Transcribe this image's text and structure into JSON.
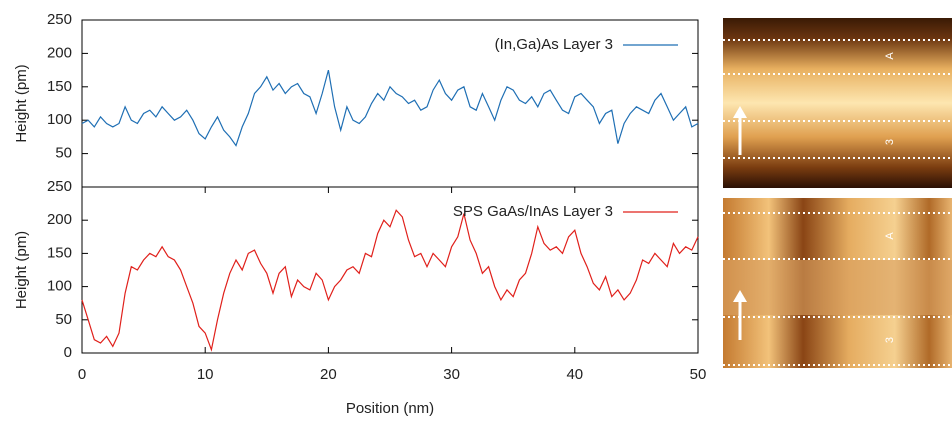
{
  "chart_data": [
    {
      "type": "line",
      "ylabel": "Height (pm)",
      "xlim": [
        0,
        50
      ],
      "ylim": [
        0,
        250
      ],
      "yticks": [
        50,
        100,
        150,
        200,
        250
      ],
      "legend": "upper right",
      "x": [
        0,
        0.5,
        1,
        1.5,
        2,
        2.5,
        3,
        3.5,
        4,
        4.5,
        5,
        5.5,
        6,
        6.5,
        7,
        7.5,
        8,
        8.5,
        9,
        9.5,
        10,
        10.5,
        11,
        11.5,
        12,
        12.5,
        13,
        13.5,
        14,
        14.5,
        15,
        15.5,
        16,
        16.5,
        17,
        17.5,
        18,
        18.5,
        19,
        19.5,
        20,
        20.5,
        21,
        21.5,
        22,
        22.5,
        23,
        23.5,
        24,
        24.5,
        25,
        25.5,
        26,
        26.5,
        27,
        27.5,
        28,
        28.5,
        29,
        29.5,
        30,
        30.5,
        31,
        31.5,
        32,
        32.5,
        33,
        33.5,
        34,
        34.5,
        35,
        35.5,
        36,
        36.5,
        37,
        37.5,
        38,
        38.5,
        39,
        39.5,
        40,
        40.5,
        41,
        41.5,
        42,
        42.5,
        43,
        43.5,
        44,
        44.5,
        45,
        45.5,
        46,
        46.5,
        47,
        47.5,
        48,
        48.5,
        49,
        49.5,
        50
      ],
      "series": [
        {
          "name": "(In,Ga)As Layer 3",
          "color": "#1f6fb4",
          "values": [
            95,
            100,
            90,
            105,
            95,
            90,
            95,
            120,
            100,
            95,
            110,
            115,
            105,
            120,
            110,
            100,
            105,
            115,
            100,
            80,
            72,
            90,
            105,
            85,
            75,
            62,
            90,
            110,
            140,
            150,
            165,
            145,
            155,
            140,
            150,
            155,
            140,
            135,
            110,
            140,
            175,
            120,
            85,
            120,
            100,
            95,
            105,
            125,
            140,
            130,
            150,
            140,
            135,
            125,
            130,
            115,
            120,
            145,
            160,
            140,
            130,
            145,
            150,
            120,
            115,
            140,
            120,
            100,
            130,
            150,
            145,
            130,
            125,
            135,
            120,
            140,
            145,
            130,
            115,
            110,
            135,
            140,
            130,
            120,
            95,
            110,
            115,
            65,
            95,
            110,
            120,
            115,
            110,
            130,
            140,
            120,
            100,
            110,
            120,
            90,
            95
          ]
        }
      ]
    },
    {
      "type": "line",
      "ylabel": "Height (pm)",
      "xlabel": "Position (nm)",
      "xlim": [
        0,
        50
      ],
      "ylim": [
        0,
        250
      ],
      "xticks": [
        0,
        10,
        20,
        30,
        40,
        50
      ],
      "yticks": [
        0,
        50,
        100,
        150,
        200,
        250
      ],
      "legend": "upper right",
      "x": [
        0,
        0.5,
        1,
        1.5,
        2,
        2.5,
        3,
        3.5,
        4,
        4.5,
        5,
        5.5,
        6,
        6.5,
        7,
        7.5,
        8,
        8.5,
        9,
        9.5,
        10,
        10.5,
        11,
        11.5,
        12,
        12.5,
        13,
        13.5,
        14,
        14.5,
        15,
        15.5,
        16,
        16.5,
        17,
        17.5,
        18,
        18.5,
        19,
        19.5,
        20,
        20.5,
        21,
        21.5,
        22,
        22.5,
        23,
        23.5,
        24,
        24.5,
        25,
        25.5,
        26,
        26.5,
        27,
        27.5,
        28,
        28.5,
        29,
        29.5,
        30,
        30.5,
        31,
        31.5,
        32,
        32.5,
        33,
        33.5,
        34,
        34.5,
        35,
        35.5,
        36,
        36.5,
        37,
        37.5,
        38,
        38.5,
        39,
        39.5,
        40,
        40.5,
        41,
        41.5,
        42,
        42.5,
        43,
        43.5,
        44,
        44.5,
        45,
        45.5,
        46,
        46.5,
        47,
        47.5,
        48,
        48.5,
        49,
        49.5,
        50
      ],
      "series": [
        {
          "name": "SPS GaAs/InAs Layer 3",
          "color": "#e0201b",
          "values": [
            80,
            50,
            20,
            15,
            25,
            10,
            30,
            90,
            130,
            125,
            140,
            150,
            145,
            160,
            145,
            140,
            125,
            100,
            75,
            40,
            30,
            5,
            50,
            90,
            120,
            140,
            125,
            150,
            155,
            135,
            120,
            90,
            120,
            130,
            85,
            110,
            100,
            95,
            120,
            110,
            80,
            100,
            110,
            125,
            130,
            120,
            150,
            145,
            180,
            200,
            190,
            215,
            205,
            170,
            145,
            150,
            130,
            150,
            140,
            130,
            160,
            175,
            210,
            170,
            150,
            120,
            130,
            100,
            80,
            95,
            85,
            110,
            120,
            150,
            190,
            165,
            155,
            160,
            150,
            175,
            185,
            150,
            130,
            105,
            95,
            115,
            85,
            95,
            80,
            90,
            110,
            140,
            135,
            150,
            140,
            130,
            165,
            150,
            160,
            155,
            175
          ]
        }
      ]
    }
  ],
  "images": [
    {
      "labels": [
        "A",
        "3"
      ]
    },
    {
      "labels": [
        "A",
        "3"
      ]
    }
  ]
}
